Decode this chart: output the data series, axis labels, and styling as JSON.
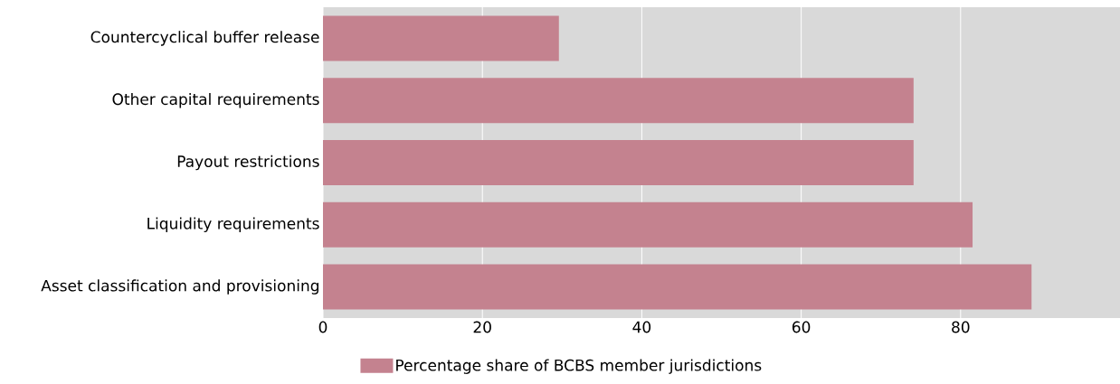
{
  "chart_data": {
    "type": "bar",
    "orientation": "horizontal",
    "categories": [
      "Countercyclical buffer release",
      "Other capital requirements",
      "Payout restrictions",
      "Liquidity requirements",
      "Asset classification and provisioning"
    ],
    "series": [
      {
        "name": "Percentage share of BCBS member jurisdictions",
        "color": "#c4828f",
        "values": [
          29.6,
          74.1,
          74.1,
          81.5,
          88.9
        ]
      }
    ],
    "xlim": [
      0,
      100
    ],
    "xticks": [
      0,
      20,
      40,
      60,
      80
    ],
    "grid": "x",
    "legend": "bottom"
  }
}
